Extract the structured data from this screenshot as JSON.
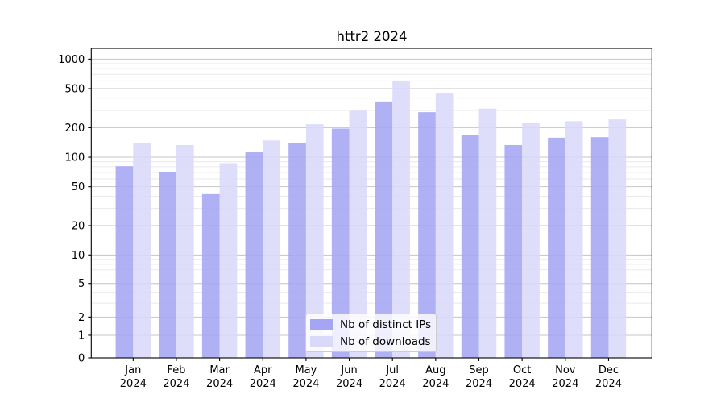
{
  "chart_data": {
    "type": "bar",
    "title": "httr2 2024",
    "categories": [
      "Jan",
      "Feb",
      "Mar",
      "Apr",
      "May",
      "Jun",
      "Jul",
      "Aug",
      "Sep",
      "Oct",
      "Nov",
      "Dec"
    ],
    "x_tick_year_line": "2024",
    "series": [
      {
        "name": "Nb of distinct IPs",
        "color": "#a5a5f3",
        "values": [
          81,
          70,
          42,
          114,
          140,
          196,
          370,
          288,
          169,
          133,
          158,
          160
        ]
      },
      {
        "name": "Nb of downloads",
        "color": "#d9d9fa",
        "values": [
          138,
          133,
          87,
          148,
          217,
          298,
          604,
          446,
          313,
          222,
          233,
          243
        ]
      }
    ],
    "xlabel": "",
    "ylabel": "",
    "yscale": "symlog",
    "yticks": [
      0,
      1,
      2,
      5,
      10,
      20,
      50,
      100,
      200,
      500,
      1000
    ],
    "minor_yticks": [
      3,
      4,
      6,
      7,
      8,
      9,
      30,
      40,
      60,
      70,
      80,
      90,
      300,
      400,
      600,
      700,
      800,
      900
    ],
    "ylim": [
      0,
      1290
    ],
    "grid": true,
    "legend_position": "lower center",
    "colors": {
      "major_grid": "#c4c4c4",
      "minor_grid": "#eaeaea",
      "spine": "#000000",
      "text": "#000000"
    }
  }
}
